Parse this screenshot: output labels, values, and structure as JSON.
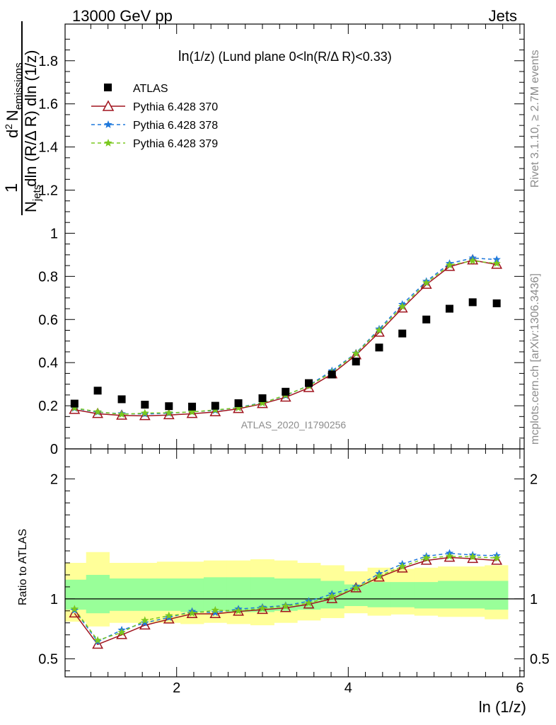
{
  "header": {
    "left": "13000 GeV pp",
    "right": "Jets"
  },
  "side_labels": {
    "rivet": "Rivet 3.1.10, ≥ 2.7M events",
    "mcplots": "mcplots.cern.ch [arXiv:1306.3436]"
  },
  "chart_data": [
    {
      "type": "scatter",
      "title": "ln(1/z) (Lund plane 0<ln(R/Δ R)<0.33)",
      "title_main": "ln",
      "title_rest": "(1/z) (Lund plane 0<ln(R/Δ R)<0.33)",
      "ylabel": "1/N_jets dln (R/Δ R) dln (1/z) · d² N_emissions",
      "ylabel_parts": {
        "one": "1",
        "den_N": "N",
        "den_sub": "jets",
        "den_rest": "dln (R/Δ R) dln (1/z)",
        "num_d": "d",
        "num_sup": "2",
        "num_N": "N",
        "num_sub": "emissions"
      },
      "watermark": "ATLAS_2020_I1790256",
      "xlim": [
        0.7,
        6.05
      ],
      "ylim": [
        0,
        1.97
      ],
      "yticks": [
        {
          "v": 0,
          "label": "0"
        },
        {
          "v": 0.2,
          "label": "0.2"
        },
        {
          "v": 0.4,
          "label": "0.4"
        },
        {
          "v": 0.6,
          "label": "0.6"
        },
        {
          "v": 0.8,
          "label": "0.8"
        },
        {
          "v": 1,
          "label": "1"
        },
        {
          "v": 1.2,
          "label": "1.2"
        },
        {
          "v": 1.4,
          "label": "1.4"
        },
        {
          "v": 1.6,
          "label": "1.6"
        },
        {
          "v": 1.8,
          "label": "1.8"
        }
      ],
      "x": [
        0.81,
        1.08,
        1.36,
        1.63,
        1.91,
        2.18,
        2.45,
        2.72,
        3.0,
        3.27,
        3.54,
        3.81,
        4.09,
        4.36,
        4.63,
        4.91,
        5.18,
        5.45,
        5.73
      ],
      "series": [
        {
          "name": "ATLAS",
          "color": "#000000",
          "marker": "square",
          "values": [
            0.21,
            0.27,
            0.23,
            0.205,
            0.198,
            0.196,
            0.2,
            0.212,
            0.235,
            0.265,
            0.305,
            0.345,
            0.405,
            0.47,
            0.535,
            0.6,
            0.65,
            0.68,
            0.675
          ]
        },
        {
          "name": "Pythia 6.428 370",
          "color": "#a0141e",
          "marker": "triangle-open",
          "dash": "",
          "values": [
            0.182,
            0.163,
            0.155,
            0.153,
            0.157,
            0.163,
            0.171,
            0.186,
            0.209,
            0.239,
            0.283,
            0.347,
            0.435,
            0.54,
            0.652,
            0.762,
            0.845,
            0.875,
            0.855
          ]
        },
        {
          "name": "Pythia 6.428 378",
          "color": "#1e78dc",
          "marker": "star",
          "dash": "5,4",
          "values": [
            0.188,
            0.17,
            0.163,
            0.162,
            0.165,
            0.172,
            0.178,
            0.192,
            0.214,
            0.247,
            0.295,
            0.362,
            0.444,
            0.556,
            0.67,
            0.777,
            0.86,
            0.885,
            0.878
          ]
        },
        {
          "name": "Pythia 6.428 379",
          "color": "#7ac81e",
          "marker": "star",
          "dash": "5,4",
          "values": [
            0.19,
            0.172,
            0.16,
            0.166,
            0.167,
            0.171,
            0.181,
            0.19,
            0.212,
            0.25,
            0.292,
            0.355,
            0.442,
            0.55,
            0.66,
            0.77,
            0.852,
            0.872,
            0.86
          ]
        }
      ]
    },
    {
      "type": "line",
      "ylabel": "Ratio to ATLAS",
      "xlabel": "ln (1/z)",
      "xlim": [
        0.7,
        6.05
      ],
      "ylim": [
        0.35,
        2.25
      ],
      "xticks": [
        {
          "v": 2,
          "label": "2"
        },
        {
          "v": 4,
          "label": "4"
        },
        {
          "v": 6,
          "label": "6"
        }
      ],
      "yticks": [
        {
          "v": 0.5,
          "label": "0.5"
        },
        {
          "v": 1,
          "label": "1"
        },
        {
          "v": 2,
          "label": "2"
        }
      ],
      "x": [
        0.81,
        1.08,
        1.36,
        1.63,
        1.91,
        2.18,
        2.45,
        2.72,
        3.0,
        3.27,
        3.54,
        3.81,
        4.09,
        4.36,
        4.63,
        4.91,
        5.18,
        5.45,
        5.73
      ],
      "bin_edges": [
        0.7,
        0.945,
        1.215,
        1.495,
        1.77,
        2.045,
        2.315,
        2.585,
        2.86,
        3.135,
        3.405,
        3.675,
        3.95,
        4.225,
        4.495,
        4.77,
        5.045,
        5.315,
        5.59,
        5.86
      ],
      "band_yellow": [
        [
          0.81,
          1.3
        ],
        [
          0.77,
          1.39
        ],
        [
          0.8,
          1.3
        ],
        [
          0.8,
          1.3
        ],
        [
          0.8,
          1.31
        ],
        [
          0.79,
          1.31
        ],
        [
          0.8,
          1.32
        ],
        [
          0.79,
          1.32
        ],
        [
          0.78,
          1.33
        ],
        [
          0.8,
          1.32
        ],
        [
          0.82,
          1.3
        ],
        [
          0.84,
          1.28
        ],
        [
          0.88,
          1.23
        ],
        [
          0.86,
          1.26
        ],
        [
          0.87,
          1.25
        ],
        [
          0.86,
          1.26
        ],
        [
          0.85,
          1.27
        ],
        [
          0.85,
          1.27
        ],
        [
          0.83,
          1.28
        ]
      ],
      "band_green": [
        [
          0.91,
          1.16
        ],
        [
          0.88,
          1.2
        ],
        [
          0.9,
          1.17
        ],
        [
          0.9,
          1.17
        ],
        [
          0.9,
          1.17
        ],
        [
          0.89,
          1.17
        ],
        [
          0.9,
          1.18
        ],
        [
          0.89,
          1.18
        ],
        [
          0.89,
          1.18
        ],
        [
          0.9,
          1.17
        ],
        [
          0.91,
          1.17
        ],
        [
          0.92,
          1.15
        ],
        [
          0.94,
          1.12
        ],
        [
          0.93,
          1.14
        ],
        [
          0.93,
          1.14
        ],
        [
          0.92,
          1.14
        ],
        [
          0.92,
          1.15
        ],
        [
          0.92,
          1.15
        ],
        [
          0.91,
          1.15
        ]
      ],
      "series": [
        {
          "name": "Pythia 6.428 370",
          "color": "#a0141e",
          "marker": "triangle-open",
          "dash": "",
          "values": [
            0.88,
            0.62,
            0.7,
            0.78,
            0.83,
            0.875,
            0.875,
            0.895,
            0.91,
            0.925,
            0.955,
            1.0,
            1.09,
            1.18,
            1.255,
            1.32,
            1.345,
            1.335,
            1.32
          ]
        },
        {
          "name": "Pythia 6.428 378",
          "color": "#1e78dc",
          "marker": "star",
          "dash": "5,4",
          "values": [
            0.905,
            0.645,
            0.74,
            0.8,
            0.845,
            0.895,
            0.885,
            0.915,
            0.93,
            0.945,
            0.98,
            1.04,
            1.1,
            1.21,
            1.29,
            1.355,
            1.38,
            1.365,
            1.36
          ]
        },
        {
          "name": "Pythia 6.428 379",
          "color": "#7ac81e",
          "marker": "star",
          "dash": "5,4",
          "values": [
            0.915,
            0.655,
            0.72,
            0.82,
            0.86,
            0.88,
            0.905,
            0.9,
            0.92,
            0.94,
            0.965,
            1.02,
            1.09,
            1.19,
            1.27,
            1.34,
            1.355,
            1.35,
            1.34
          ]
        }
      ]
    }
  ]
}
